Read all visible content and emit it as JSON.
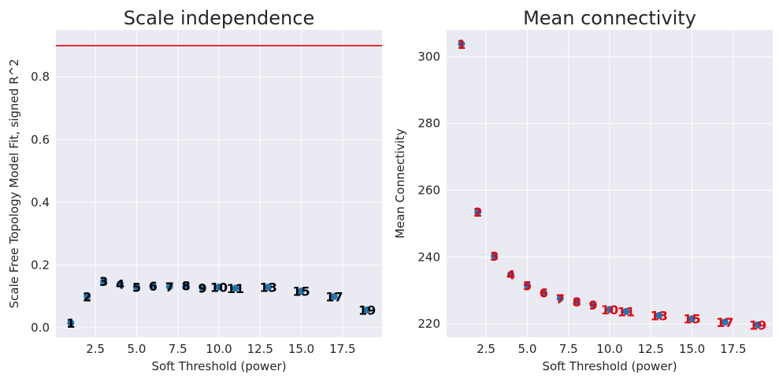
{
  "chart_data": [
    {
      "type": "scatter",
      "title": "Scale independence",
      "xlabel": "Soft Threshold (power)",
      "ylabel": "Scale Free Topology Model Fit, signed R^2",
      "xlim": [
        0.1,
        19.9
      ],
      "ylim": [
        -0.03,
        0.95
      ],
      "xticks": [
        "2.5",
        "5.0",
        "7.5",
        "10.0",
        "12.5",
        "15.0",
        "17.5"
      ],
      "xtick_values": [
        2.5,
        5.0,
        7.5,
        10.0,
        12.5,
        15.0,
        17.5
      ],
      "yticks": [
        "0.0",
        "0.2",
        "0.4",
        "0.6",
        "0.8"
      ],
      "ytick_values": [
        0.0,
        0.2,
        0.4,
        0.6,
        0.8
      ],
      "hline": {
        "y": 0.9,
        "color": "#e8000b"
      },
      "label_color": "#000000",
      "point_color": "#1f77b4",
      "x": [
        1,
        2,
        3,
        4,
        5,
        6,
        7,
        8,
        9,
        10,
        11,
        13,
        15,
        17,
        19
      ],
      "y": [
        0.015,
        0.1,
        0.148,
        0.14,
        0.13,
        0.133,
        0.131,
        0.135,
        0.127,
        0.13,
        0.126,
        0.13,
        0.117,
        0.1,
        0.057
      ],
      "labels": [
        "1",
        "2",
        "3",
        "4",
        "5",
        "6",
        "7",
        "8",
        "9",
        "10",
        "11",
        "13",
        "15",
        "17",
        "19"
      ],
      "grid": true
    },
    {
      "type": "scatter",
      "title": "Mean connectivity",
      "xlabel": "Soft Threshold (power)",
      "ylabel": "Mean Connectivity",
      "xlim": [
        0.1,
        19.9
      ],
      "ylim": [
        216,
        308
      ],
      "xticks": [
        "2.5",
        "5.0",
        "7.5",
        "10.0",
        "12.5",
        "15.0",
        "17.5"
      ],
      "xtick_values": [
        2.5,
        5.0,
        7.5,
        10.0,
        12.5,
        15.0,
        17.5
      ],
      "yticks": [
        "220",
        "240",
        "260",
        "280",
        "300"
      ],
      "ytick_values": [
        220,
        240,
        260,
        280,
        300
      ],
      "label_color": "#e8000b",
      "point_color": "#1f77b4",
      "x": [
        1,
        2,
        3,
        4,
        5,
        6,
        7,
        8,
        9,
        10,
        11,
        13,
        15,
        17,
        19
      ],
      "y": [
        303.8,
        253.5,
        240.3,
        234.8,
        231.5,
        229.3,
        227.6,
        226.6,
        225.7,
        224.3,
        223.7,
        222.5,
        221.5,
        220.5,
        219.7
      ],
      "labels": [
        "1",
        "2",
        "3",
        "4",
        "5",
        "6",
        "7",
        "8",
        "9",
        "10",
        "11",
        "13",
        "15",
        "17",
        "19"
      ],
      "grid": true
    }
  ]
}
